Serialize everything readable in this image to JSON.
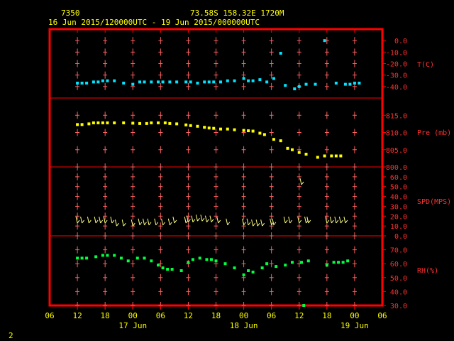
{
  "header": {
    "station": "7350",
    "location": "73.58S  158.32E  1720M",
    "period": "16 Jun 2015/120000UTC - 19 Jun 2015/000000UTC"
  },
  "footer": {
    "page_number": "2"
  },
  "colors": {
    "background": "#000000",
    "frame": "#ff0000",
    "grid": "#ff6060",
    "text": "#ffff00",
    "temperature": "#00e5ff",
    "pressure": "#ffff00",
    "wind": "#ffff80",
    "humidity": "#00ff40"
  },
  "chart_data": {
    "type": "scatter",
    "x_axis": {
      "unit": "hours from 16 Jun 06UTC",
      "range": [
        0,
        72
      ],
      "ticks": [
        {
          "h": 0,
          "label": "06"
        },
        {
          "h": 6,
          "label": "12"
        },
        {
          "h": 12,
          "label": "18"
        },
        {
          "h": 18,
          "label": "00"
        },
        {
          "h": 24,
          "label": "06"
        },
        {
          "h": 30,
          "label": "12"
        },
        {
          "h": 36,
          "label": "18"
        },
        {
          "h": 42,
          "label": "00"
        },
        {
          "h": 48,
          "label": "06"
        },
        {
          "h": 54,
          "label": "12"
        },
        {
          "h": 60,
          "label": "18"
        },
        {
          "h": 66,
          "label": "00"
        },
        {
          "h": 72,
          "label": "06"
        }
      ],
      "date_labels": [
        {
          "h": 18,
          "label": "17 Jun"
        },
        {
          "h": 42,
          "label": "18 Jun"
        },
        {
          "h": 66,
          "label": "19 Jun"
        }
      ]
    },
    "panels": [
      {
        "key": "temp",
        "label": "T(C)",
        "range": [
          -50,
          10
        ],
        "ticks": [
          "0.0",
          "-10.0",
          "-20.0",
          "-30.0",
          "-40.0"
        ],
        "tick_values": [
          0,
          -10,
          -20,
          -30,
          -40
        ],
        "points": [
          [
            6,
            -37
          ],
          [
            7,
            -37
          ],
          [
            8,
            -37
          ],
          [
            9.5,
            -36
          ],
          [
            10.5,
            -36
          ],
          [
            11.5,
            -35
          ],
          [
            12.5,
            -35
          ],
          [
            14,
            -35
          ],
          [
            16,
            -37
          ],
          [
            18,
            -38
          ],
          [
            19.5,
            -36
          ],
          [
            20.5,
            -36
          ],
          [
            22,
            -36
          ],
          [
            23.5,
            -36
          ],
          [
            24.5,
            -36
          ],
          [
            26,
            -36
          ],
          [
            27.5,
            -36
          ],
          [
            29.5,
            -36
          ],
          [
            30.5,
            -36
          ],
          [
            32,
            -37
          ],
          [
            33.5,
            -36
          ],
          [
            34.5,
            -36
          ],
          [
            35.5,
            -36
          ],
          [
            37,
            -36
          ],
          [
            38.5,
            -35
          ],
          [
            40,
            -35
          ],
          [
            42,
            -33
          ],
          [
            43,
            -35
          ],
          [
            44,
            -35
          ],
          [
            45.5,
            -34
          ],
          [
            47,
            -36
          ],
          [
            48.5,
            -33
          ],
          [
            50,
            -11
          ],
          [
            51,
            -39
          ],
          [
            53,
            -42
          ],
          [
            54,
            -40
          ],
          [
            55.5,
            -38
          ],
          [
            57.5,
            -38
          ],
          [
            59.5,
            0
          ],
          [
            62,
            -37
          ],
          [
            64,
            -38
          ],
          [
            65,
            -38
          ],
          [
            66,
            -37
          ],
          [
            67,
            -37
          ]
        ]
      },
      {
        "key": "pres",
        "label": "Pre (mb)",
        "range": [
          800,
          820
        ],
        "ticks": [
          "815.0",
          "810.0",
          "805.0",
          "800.0"
        ],
        "tick_values": [
          815,
          810,
          805,
          800
        ],
        "points": [
          [
            6,
            812.3
          ],
          [
            7,
            812.3
          ],
          [
            8.5,
            812.5
          ],
          [
            9.5,
            812.8
          ],
          [
            10.5,
            812.8
          ],
          [
            11.5,
            812.8
          ],
          [
            12.5,
            812.8
          ],
          [
            14,
            812.8
          ],
          [
            16,
            812.8
          ],
          [
            18,
            812.7
          ],
          [
            19.5,
            812.6
          ],
          [
            21,
            812.6
          ],
          [
            22,
            812.8
          ],
          [
            23.5,
            812.8
          ],
          [
            25,
            812.8
          ],
          [
            26,
            812.6
          ],
          [
            27.5,
            812.5
          ],
          [
            29.5,
            812.2
          ],
          [
            30.5,
            812
          ],
          [
            32,
            811.8
          ],
          [
            33.5,
            811.5
          ],
          [
            34.5,
            811.3
          ],
          [
            35.5,
            811.2
          ],
          [
            37,
            811
          ],
          [
            38.5,
            811
          ],
          [
            40,
            810.8
          ],
          [
            42,
            810.6
          ],
          [
            43,
            810.5
          ],
          [
            44,
            810.4
          ],
          [
            45.5,
            809.8
          ],
          [
            46.5,
            809.4
          ],
          [
            48.5,
            808
          ],
          [
            50,
            807.6
          ],
          [
            51.5,
            805.4
          ],
          [
            52.5,
            805
          ],
          [
            54,
            804.2
          ],
          [
            55.5,
            803.7
          ],
          [
            58,
            802.8
          ],
          [
            59.5,
            803.2
          ],
          [
            61,
            803.2
          ],
          [
            62,
            803.2
          ],
          [
            63,
            803.2
          ]
        ]
      },
      {
        "key": "wind",
        "label": "SPD(MPS)",
        "range": [
          0,
          70
        ],
        "ticks": [
          "60.0",
          "50.0",
          "40.0",
          "30.0",
          "20.0",
          "10.0",
          "0.0"
        ],
        "tick_values": [
          60,
          50,
          40,
          30,
          20,
          10,
          0
        ],
        "points": [
          [
            6,
            13
          ],
          [
            7,
            13
          ],
          [
            8.5,
            13
          ],
          [
            10,
            13
          ],
          [
            11,
            13
          ],
          [
            12,
            13
          ],
          [
            13.5,
            13
          ],
          [
            14.5,
            10
          ],
          [
            16,
            10
          ],
          [
            18,
            10
          ],
          [
            19.5,
            11
          ],
          [
            20.5,
            11
          ],
          [
            21.5,
            11
          ],
          [
            23,
            11
          ],
          [
            24.5,
            11
          ],
          [
            26,
            11
          ],
          [
            27,
            13
          ],
          [
            29.5,
            13
          ],
          [
            30,
            14
          ],
          [
            31,
            14
          ],
          [
            32,
            15
          ],
          [
            33,
            15
          ],
          [
            34,
            14
          ],
          [
            35,
            14
          ],
          [
            36.5,
            13
          ],
          [
            38.5,
            11
          ],
          [
            42,
            11
          ],
          [
            43,
            11
          ],
          [
            44,
            10
          ],
          [
            45,
            10
          ],
          [
            46,
            10
          ],
          [
            48,
            11
          ],
          [
            48.5,
            11
          ],
          [
            51,
            13
          ],
          [
            52,
            13
          ],
          [
            54,
            13
          ],
          [
            55.5,
            13
          ],
          [
            56,
            13
          ],
          [
            60,
            13
          ],
          [
            61,
            13
          ],
          [
            62,
            13
          ],
          [
            63,
            13
          ],
          [
            64,
            13
          ],
          [
            54.5,
            52
          ]
        ]
      },
      {
        "key": "rh",
        "label": "RH(%)",
        "range": [
          30,
          80
        ],
        "ticks": [
          "70.0",
          "60.0",
          "50.0",
          "40.0",
          "30.0"
        ],
        "tick_values": [
          70,
          60,
          50,
          40,
          30
        ],
        "points": [
          [
            6,
            64
          ],
          [
            7,
            64
          ],
          [
            8,
            64
          ],
          [
            10,
            65
          ],
          [
            11.5,
            66
          ],
          [
            12.5,
            66
          ],
          [
            14,
            66
          ],
          [
            15.5,
            64
          ],
          [
            17,
            62
          ],
          [
            19,
            64
          ],
          [
            20.5,
            64
          ],
          [
            22,
            62
          ],
          [
            23.5,
            59
          ],
          [
            24.5,
            57
          ],
          [
            25.5,
            56
          ],
          [
            26.5,
            56
          ],
          [
            28.5,
            55
          ],
          [
            30,
            61
          ],
          [
            31,
            63
          ],
          [
            32.5,
            64
          ],
          [
            34,
            63
          ],
          [
            35,
            63
          ],
          [
            36,
            62
          ],
          [
            38,
            60
          ],
          [
            40,
            57
          ],
          [
            42,
            52
          ],
          [
            43,
            55
          ],
          [
            44,
            54
          ],
          [
            46,
            57
          ],
          [
            47,
            60
          ],
          [
            49,
            58
          ],
          [
            51,
            59
          ],
          [
            52.5,
            61
          ],
          [
            54.5,
            61
          ],
          [
            56,
            62
          ],
          [
            60,
            59
          ],
          [
            61.5,
            61
          ],
          [
            62.5,
            61
          ],
          [
            63.5,
            61
          ],
          [
            64.5,
            62
          ],
          [
            55,
            30
          ]
        ]
      }
    ]
  }
}
